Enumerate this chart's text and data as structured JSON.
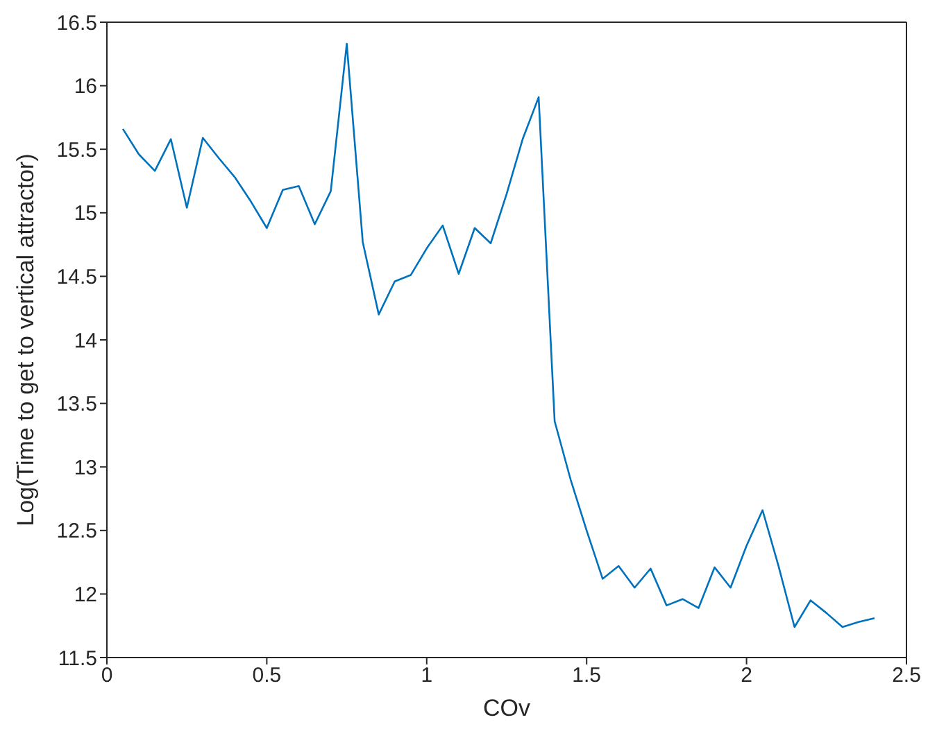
{
  "chart_data": {
    "type": "line",
    "xlabel": "COv",
    "ylabel": "Log(Time to get to vertical attractor)",
    "x": [
      0.05,
      0.1,
      0.15,
      0.2,
      0.25,
      0.3,
      0.35,
      0.4,
      0.45,
      0.5,
      0.55,
      0.6,
      0.65,
      0.7,
      0.75,
      0.8,
      0.85,
      0.9,
      0.95,
      1.0,
      1.05,
      1.1,
      1.15,
      1.2,
      1.25,
      1.3,
      1.35,
      1.4,
      1.45,
      1.5,
      1.55,
      1.6,
      1.65,
      1.7,
      1.75,
      1.8,
      1.85,
      1.9,
      1.95,
      2.0,
      2.05,
      2.1,
      2.15,
      2.2,
      2.25,
      2.3,
      2.35,
      2.4
    ],
    "series": [
      {
        "color": "#0072bd",
        "values": [
          15.66,
          15.46,
          15.33,
          15.58,
          15.04,
          15.59,
          15.43,
          15.28,
          15.09,
          14.88,
          15.18,
          15.21,
          14.91,
          15.17,
          16.33,
          14.77,
          14.2,
          14.46,
          14.51,
          14.72,
          14.9,
          14.52,
          14.88,
          14.76,
          15.15,
          15.58,
          15.91,
          13.36,
          12.9,
          12.5,
          12.12,
          12.22,
          12.05,
          12.2,
          11.91,
          11.96,
          11.89,
          12.21,
          12.05,
          12.38,
          12.66,
          12.22,
          11.74,
          11.95,
          11.85,
          11.74,
          11.78,
          11.81
        ]
      }
    ],
    "xlim": [
      0,
      2.5
    ],
    "xticks": [
      0,
      0.5,
      1,
      1.5,
      2,
      2.5
    ],
    "ylim": [
      11.5,
      16.5
    ],
    "yticks": [
      11.5,
      12,
      12.5,
      13,
      13.5,
      14,
      14.5,
      15,
      15.5,
      16,
      16.5
    ],
    "grid": false,
    "legend": false,
    "marker": "none",
    "line_style": "solid"
  }
}
